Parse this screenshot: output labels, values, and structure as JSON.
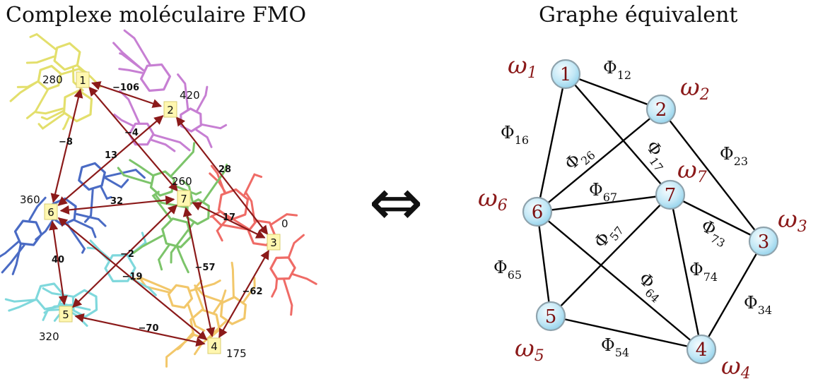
{
  "titles": {
    "left": "Complexe moléculaire FMO",
    "right": "Graphe équivalent"
  },
  "equivalence_symbol": "⇔",
  "molecule": {
    "sites": [
      {
        "id": "1",
        "energy": "280"
      },
      {
        "id": "2",
        "energy": "420"
      },
      {
        "id": "3",
        "energy": "0"
      },
      {
        "id": "4",
        "energy": "175"
      },
      {
        "id": "5",
        "energy": "320"
      },
      {
        "id": "6",
        "energy": "360"
      },
      {
        "id": "7",
        "energy": "260"
      }
    ],
    "couplings": [
      {
        "from": "1",
        "to": "2",
        "value": "−106"
      },
      {
        "from": "1",
        "to": "6",
        "value": "−8"
      },
      {
        "from": "1",
        "to": "7",
        "value": "−4"
      },
      {
        "from": "2",
        "to": "6",
        "value": "13"
      },
      {
        "from": "2",
        "to": "3",
        "value": "28"
      },
      {
        "from": "6",
        "to": "7",
        "value": "32"
      },
      {
        "from": "7",
        "to": "3",
        "value": "17"
      },
      {
        "from": "6",
        "to": "5",
        "value": "40"
      },
      {
        "from": "7",
        "to": "5",
        "value": "−2"
      },
      {
        "from": "6",
        "to": "4",
        "value": "−19"
      },
      {
        "from": "7",
        "to": "4",
        "value": "−57"
      },
      {
        "from": "3",
        "to": "4",
        "value": "−62"
      },
      {
        "from": "5",
        "to": "4",
        "value": "−70"
      }
    ],
    "colors": {
      "site1": "#e3df6c",
      "site2": "#c77fd3",
      "site3": "#ef6b66",
      "site4": "#f2c76a",
      "site5": "#7fd8dc",
      "site6": "#4a6bc4",
      "site7": "#7cc46a",
      "arrow": "#8b1a1a",
      "label_box": "#fff7b0"
    }
  },
  "graph": {
    "node_labels": [
      "1",
      "2",
      "3",
      "4",
      "5",
      "6",
      "7"
    ],
    "omega_symbol": "ω",
    "phi_symbol": "Φ",
    "edge_labels": [
      "12",
      "16",
      "26",
      "17",
      "23",
      "67",
      "73",
      "57",
      "65",
      "64",
      "74",
      "34",
      "54"
    ],
    "colors": {
      "node_fill": "#bfe6f5",
      "node_stroke": "#8fa3ad",
      "node_text": "#7a0f10",
      "omega": "#8b1a1a",
      "edge": "#000000"
    }
  }
}
